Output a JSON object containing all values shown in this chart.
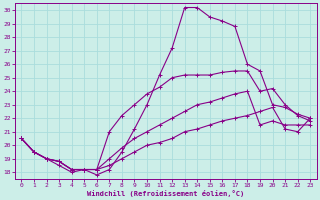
{
  "xlabel": "Windchill (Refroidissement éolien,°C)",
  "bg_color": "#cceee8",
  "line_color": "#880088",
  "grid_color": "#aadddd",
  "xlim": [
    -0.5,
    23.5
  ],
  "ylim": [
    17.5,
    30.5
  ],
  "xticks": [
    0,
    1,
    2,
    3,
    4,
    5,
    6,
    7,
    8,
    9,
    10,
    11,
    12,
    13,
    14,
    15,
    16,
    17,
    18,
    19,
    20,
    21,
    22,
    23
  ],
  "yticks": [
    18,
    19,
    20,
    21,
    22,
    23,
    24,
    25,
    26,
    27,
    28,
    29,
    30
  ],
  "line1_x": [
    0,
    1,
    2,
    3,
    4,
    5,
    6,
    7,
    8,
    9,
    10,
    11,
    12,
    13,
    14,
    15,
    16,
    17,
    18,
    19,
    20,
    21,
    22,
    23
  ],
  "line1_y": [
    20.5,
    19.5,
    19.0,
    18.5,
    18.0,
    18.2,
    17.8,
    18.2,
    19.5,
    21.2,
    23.0,
    25.2,
    27.2,
    30.2,
    30.2,
    29.5,
    29.2,
    28.8,
    26.0,
    25.5,
    23.0,
    22.8,
    22.3,
    22.0
  ],
  "line2_x": [
    0,
    1,
    2,
    3,
    4,
    5,
    6,
    7,
    8,
    9,
    10,
    11,
    12,
    13,
    14,
    15,
    16,
    17,
    18,
    19,
    20,
    21,
    22,
    23
  ],
  "line2_y": [
    20.5,
    19.5,
    19.0,
    18.8,
    18.2,
    18.2,
    18.2,
    21.0,
    22.2,
    23.0,
    23.8,
    24.3,
    25.0,
    25.2,
    25.2,
    25.2,
    25.4,
    25.5,
    25.5,
    24.0,
    24.2,
    23.0,
    22.2,
    21.8
  ],
  "line3_x": [
    0,
    1,
    2,
    3,
    4,
    5,
    6,
    7,
    8,
    9,
    10,
    11,
    12,
    13,
    14,
    15,
    16,
    17,
    18,
    19,
    20,
    21,
    22,
    23
  ],
  "line3_y": [
    20.5,
    19.5,
    19.0,
    18.8,
    18.2,
    18.2,
    18.2,
    19.0,
    19.8,
    20.5,
    21.0,
    21.5,
    22.0,
    22.5,
    23.0,
    23.2,
    23.5,
    23.8,
    24.0,
    21.5,
    21.8,
    21.5,
    21.5,
    21.5
  ],
  "line4_x": [
    0,
    1,
    2,
    3,
    4,
    5,
    6,
    7,
    8,
    9,
    10,
    11,
    12,
    13,
    14,
    15,
    16,
    17,
    18,
    19,
    20,
    21,
    22,
    23
  ],
  "line4_y": [
    20.5,
    19.5,
    19.0,
    18.8,
    18.2,
    18.2,
    18.2,
    18.5,
    19.0,
    19.5,
    20.0,
    20.2,
    20.5,
    21.0,
    21.2,
    21.5,
    21.8,
    22.0,
    22.2,
    22.5,
    22.8,
    21.2,
    21.0,
    22.0
  ]
}
